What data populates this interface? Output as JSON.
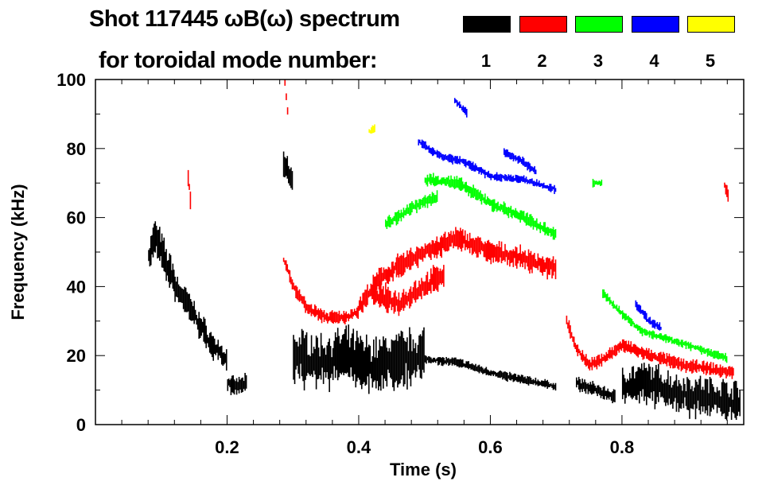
{
  "chart_data": {
    "type": "heatmap",
    "title": "Shot 117445 ωB(ω) spectrum",
    "subtitle": "for toroidal mode number:",
    "xlabel": "Time (s)",
    "ylabel": "Frequency (kHz)",
    "xlim": [
      0.0,
      0.985
    ],
    "ylim": [
      0,
      100
    ],
    "xticks": [
      0.2,
      0.4,
      0.6,
      0.8
    ],
    "xtick_labels": [
      "0.2",
      "0.4",
      "0.6",
      "0.8"
    ],
    "yticks": [
      0,
      20,
      40,
      60,
      80,
      100
    ],
    "ytick_labels": [
      "0",
      "20",
      "40",
      "60",
      "80",
      "100"
    ],
    "legend": {
      "placement": "top",
      "entries": [
        {
          "label": "1",
          "color": "#000000"
        },
        {
          "label": "2",
          "color": "#ff0000"
        },
        {
          "label": "3",
          "color": "#00ff00"
        },
        {
          "label": "4",
          "color": "#0000ff"
        },
        {
          "label": "5",
          "color": "#ffff00"
        }
      ]
    },
    "series": [
      {
        "name": "n=1",
        "color": "#000000",
        "segments": [
          {
            "spread": 8,
            "points": [
              [
                0.08,
                48
              ],
              [
                0.09,
                55
              ],
              [
                0.1,
                50
              ],
              [
                0.11,
                45
              ],
              [
                0.12,
                42
              ]
            ]
          },
          {
            "spread": 6,
            "points": [
              [
                0.12,
                40
              ],
              [
                0.14,
                35
              ],
              [
                0.16,
                28
              ],
              [
                0.18,
                22
              ],
              [
                0.2,
                18
              ]
            ]
          },
          {
            "spread": 4,
            "points": [
              [
                0.2,
                12
              ],
              [
                0.21,
                11
              ],
              [
                0.23,
                12
              ]
            ]
          },
          {
            "spread": 6,
            "points": [
              [
                0.285,
                76
              ],
              [
                0.3,
                70
              ]
            ]
          },
          {
            "spread": 12,
            "points": [
              [
                0.3,
                20
              ],
              [
                0.34,
                18
              ],
              [
                0.38,
                20
              ],
              [
                0.42,
                17
              ],
              [
                0.46,
                19
              ],
              [
                0.5,
                20
              ]
            ]
          },
          {
            "spread": 2,
            "points": [
              [
                0.5,
                19
              ],
              [
                0.55,
                18
              ],
              [
                0.6,
                15
              ],
              [
                0.65,
                13
              ],
              [
                0.7,
                11
              ]
            ]
          },
          {
            "spread": 3,
            "points": [
              [
                0.73,
                12
              ],
              [
                0.76,
                10
              ],
              [
                0.79,
                8
              ]
            ]
          },
          {
            "spread": 9,
            "points": [
              [
                0.8,
                11
              ],
              [
                0.84,
                12
              ],
              [
                0.88,
                9
              ],
              [
                0.92,
                8
              ],
              [
                0.96,
                7
              ],
              [
                0.98,
                6
              ]
            ]
          }
        ]
      },
      {
        "name": "n=2",
        "color": "#ff0000",
        "segments": [
          {
            "spread": 2,
            "points": [
              [
                0.287,
                99
              ],
              [
                0.293,
                87
              ]
            ]
          },
          {
            "spread": 4,
            "points": [
              [
                0.14,
                72
              ],
              [
                0.145,
                62
              ]
            ]
          },
          {
            "spread": 3,
            "points": [
              [
                0.285,
                48
              ],
              [
                0.3,
                40
              ],
              [
                0.32,
                34
              ],
              [
                0.35,
                31
              ],
              [
                0.38,
                31
              ],
              [
                0.4,
                33
              ]
            ]
          },
          {
            "spread": 5,
            "points": [
              [
                0.4,
                34
              ],
              [
                0.43,
                42
              ],
              [
                0.46,
                46
              ],
              [
                0.5,
                50
              ],
              [
                0.55,
                54
              ],
              [
                0.6,
                50
              ],
              [
                0.65,
                48
              ],
              [
                0.7,
                45
              ]
            ]
          },
          {
            "spread": 6,
            "points": [
              [
                0.42,
                38
              ],
              [
                0.46,
                35
              ],
              [
                0.5,
                40
              ],
              [
                0.53,
                44
              ]
            ]
          },
          {
            "spread": 3,
            "points": [
              [
                0.715,
                30
              ],
              [
                0.73,
                22
              ],
              [
                0.75,
                17
              ],
              [
                0.77,
                19
              ],
              [
                0.8,
                23
              ],
              [
                0.84,
                20
              ],
              [
                0.9,
                17
              ],
              [
                0.97,
                15
              ]
            ]
          },
          {
            "spread": 3,
            "points": [
              [
                0.955,
                69
              ],
              [
                0.962,
                66
              ]
            ]
          }
        ]
      },
      {
        "name": "n=3",
        "color": "#00ff00",
        "segments": [
          {
            "spread": 3,
            "points": [
              [
                0.5,
                71
              ],
              [
                0.55,
                70
              ],
              [
                0.6,
                64
              ],
              [
                0.65,
                60
              ],
              [
                0.7,
                55
              ]
            ]
          },
          {
            "spread": 3,
            "points": [
              [
                0.44,
                58
              ],
              [
                0.48,
                63
              ],
              [
                0.52,
                66
              ]
            ]
          },
          {
            "spread": 2,
            "points": [
              [
                0.755,
                70
              ],
              [
                0.77,
                70
              ]
            ]
          },
          {
            "spread": 2,
            "points": [
              [
                0.77,
                38
              ],
              [
                0.8,
                32
              ],
              [
                0.83,
                27
              ],
              [
                0.9,
                23
              ],
              [
                0.96,
                19
              ]
            ]
          }
        ]
      },
      {
        "name": "n=4",
        "color": "#0000ff",
        "segments": [
          {
            "spread": 2,
            "points": [
              [
                0.49,
                82
              ],
              [
                0.52,
                78
              ],
              [
                0.56,
                76
              ],
              [
                0.6,
                72
              ],
              [
                0.65,
                71
              ],
              [
                0.7,
                68
              ]
            ]
          },
          {
            "spread": 2,
            "points": [
              [
                0.545,
                94
              ],
              [
                0.565,
                90
              ]
            ]
          },
          {
            "spread": 2,
            "points": [
              [
                0.62,
                79
              ],
              [
                0.65,
                76
              ],
              [
                0.67,
                73
              ]
            ]
          },
          {
            "spread": 2,
            "points": [
              [
                0.82,
                35
              ],
              [
                0.84,
                30
              ],
              [
                0.86,
                28
              ]
            ]
          }
        ]
      },
      {
        "name": "n=5",
        "color": "#ffff00",
        "segments": [
          {
            "spread": 2,
            "points": [
              [
                0.415,
                85
              ],
              [
                0.425,
                86
              ]
            ]
          }
        ]
      }
    ]
  }
}
